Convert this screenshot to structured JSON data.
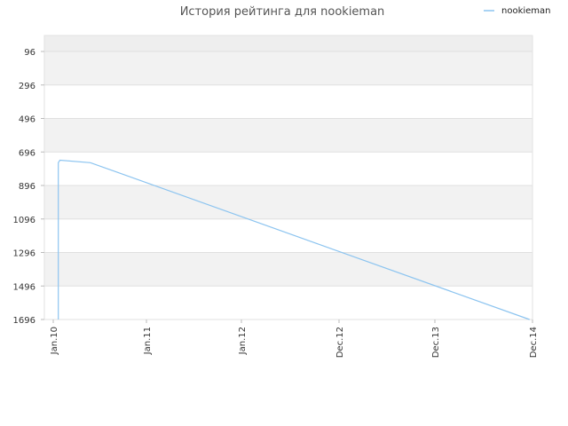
{
  "chart_data": {
    "type": "line",
    "title": "История рейтинга для nookieman",
    "xlabel": "",
    "ylabel": "",
    "y_reversed": true,
    "grid": true,
    "legend_position": "top-right",
    "x_ticks": [
      "Jan.10",
      "Jan.11",
      "Jan.12",
      "Dec.12",
      "Dec.13",
      "Dec.14"
    ],
    "y_ticks": [
      "96",
      "296",
      "496",
      "696",
      "896",
      "1096",
      "1296",
      "1496",
      "1696"
    ],
    "ylim": [
      1696,
      0
    ],
    "series": [
      {
        "name": "nookieman",
        "color": "#8cc4f0",
        "points": [
          {
            "x": "2010-01-20",
            "y": 1696
          },
          {
            "x": "2010-01-20",
            "y": 760
          },
          {
            "x": "2010-01-26",
            "y": 745
          },
          {
            "x": "2010-05-20",
            "y": 760
          },
          {
            "x": "2014-11-20",
            "y": 1696
          }
        ]
      }
    ]
  }
}
